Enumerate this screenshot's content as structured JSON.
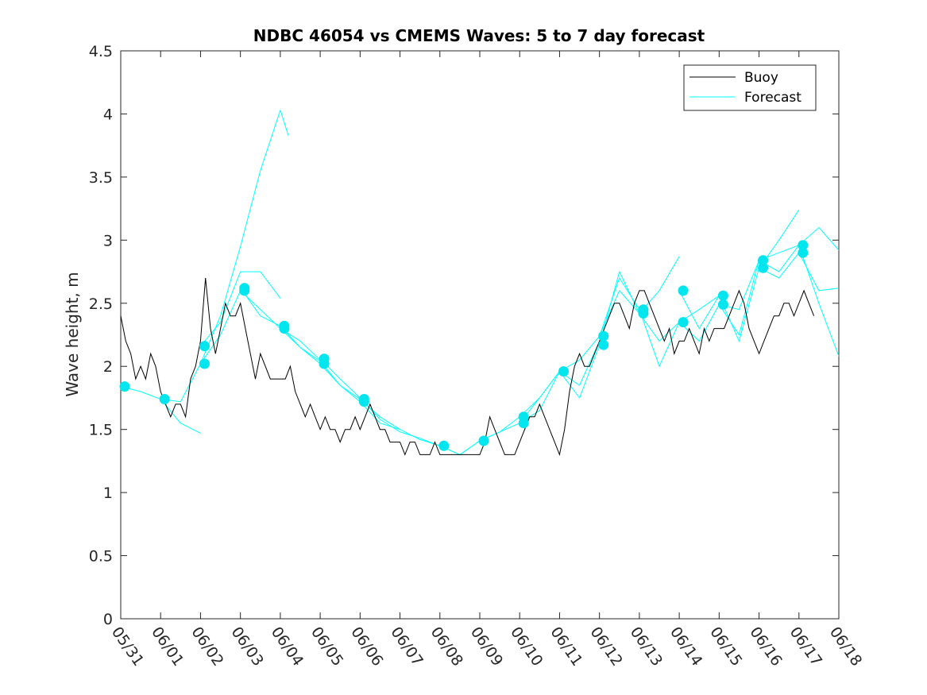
{
  "chart_data": {
    "type": "line",
    "title": "NDBC 46054 vs CMEMS Waves: 5 to 7 day forecast",
    "xlabel": "",
    "ylabel": "Wave height, m",
    "xlim": [
      "2024-05-31",
      "2024-06-18"
    ],
    "ylim": [
      0,
      4.5
    ],
    "x_ticks": [
      "05/31",
      "06/01",
      "06/02",
      "06/03",
      "06/04",
      "06/05",
      "06/06",
      "06/07",
      "06/08",
      "06/09",
      "06/10",
      "06/11",
      "06/12",
      "06/13",
      "06/14",
      "06/15",
      "06/16",
      "06/17",
      "06/18"
    ],
    "y_ticks": [
      "0",
      "0.5",
      "1",
      "1.5",
      "2",
      "2.5",
      "3",
      "3.5",
      "4",
      "4.5"
    ],
    "grid": false,
    "legend_position": "top-right",
    "colors": {
      "buoy": "#000000",
      "forecast": "#00ffff",
      "marker": "#00e5ee"
    },
    "series": [
      {
        "name": "Buoy",
        "style": "line",
        "x": [
          "05/31 00:00",
          "05/31 03:00",
          "05/31 06:00",
          "05/31 09:00",
          "05/31 12:00",
          "05/31 15:00",
          "05/31 18:00",
          "05/31 21:00",
          "06/01 00:00",
          "06/01 03:00",
          "06/01 06:00",
          "06/01 09:00",
          "06/01 12:00",
          "06/01 15:00",
          "06/01 18:00",
          "06/01 21:00",
          "06/02 00:00",
          "06/02 03:00",
          "06/02 06:00",
          "06/02 09:00",
          "06/02 12:00",
          "06/02 15:00",
          "06/02 18:00",
          "06/02 21:00",
          "06/03 00:00",
          "06/03 03:00",
          "06/03 06:00",
          "06/03 09:00",
          "06/03 12:00",
          "06/03 15:00",
          "06/03 18:00",
          "06/03 21:00",
          "06/04 00:00",
          "06/04 03:00",
          "06/04 06:00",
          "06/04 09:00",
          "06/04 12:00",
          "06/04 15:00",
          "06/04 18:00",
          "06/04 21:00",
          "06/05 00:00",
          "06/05 03:00",
          "06/05 06:00",
          "06/05 09:00",
          "06/05 12:00",
          "06/05 15:00",
          "06/05 18:00",
          "06/05 21:00",
          "06/06 00:00",
          "06/06 03:00",
          "06/06 06:00",
          "06/06 09:00",
          "06/06 12:00",
          "06/06 15:00",
          "06/06 18:00",
          "06/06 21:00",
          "06/07 00:00",
          "06/07 03:00",
          "06/07 06:00",
          "06/07 09:00",
          "06/07 12:00",
          "06/07 15:00",
          "06/07 18:00",
          "06/07 21:00",
          "06/08 00:00",
          "06/08 03:00",
          "06/08 06:00",
          "06/08 09:00",
          "06/08 12:00",
          "06/08 15:00",
          "06/08 18:00",
          "06/08 21:00",
          "06/09 00:00",
          "06/09 03:00",
          "06/09 06:00",
          "06/09 09:00",
          "06/09 12:00",
          "06/09 15:00",
          "06/09 18:00",
          "06/09 21:00",
          "06/10 00:00",
          "06/10 03:00",
          "06/10 06:00",
          "06/10 09:00",
          "06/10 12:00",
          "06/10 15:00",
          "06/10 18:00",
          "06/10 21:00",
          "06/11 00:00",
          "06/11 03:00",
          "06/11 06:00",
          "06/11 09:00",
          "06/11 12:00",
          "06/11 15:00",
          "06/11 18:00",
          "06/11 21:00",
          "06/12 00:00",
          "06/12 03:00",
          "06/12 06:00",
          "06/12 09:00",
          "06/12 12:00",
          "06/12 15:00",
          "06/12 18:00",
          "06/12 21:00",
          "06/13 00:00",
          "06/13 03:00",
          "06/13 06:00",
          "06/13 09:00",
          "06/13 12:00",
          "06/13 15:00",
          "06/13 18:00",
          "06/13 21:00",
          "06/14 00:00",
          "06/14 03:00",
          "06/14 06:00",
          "06/14 09:00",
          "06/14 12:00",
          "06/14 15:00",
          "06/14 18:00",
          "06/14 21:00",
          "06/15 00:00",
          "06/15 03:00",
          "06/15 06:00",
          "06/15 09:00",
          "06/15 12:00",
          "06/15 15:00",
          "06/15 18:00",
          "06/15 21:00",
          "06/16 00:00",
          "06/16 03:00",
          "06/16 06:00",
          "06/16 09:00",
          "06/16 12:00",
          "06/16 15:00",
          "06/16 18:00",
          "06/16 21:00",
          "06/17 00:00",
          "06/17 03:00",
          "06/17 06:00",
          "06/17 09:00"
        ],
        "days": [
          0,
          0.125,
          0.25,
          0.375,
          0.5,
          0.625,
          0.75,
          0.875,
          1,
          1.125,
          1.25,
          1.375,
          1.5,
          1.625,
          1.75,
          1.875,
          2,
          2.125,
          2.25,
          2.375,
          2.5,
          2.625,
          2.75,
          2.875,
          3,
          3.125,
          3.25,
          3.375,
          3.5,
          3.625,
          3.75,
          3.875,
          4,
          4.125,
          4.25,
          4.375,
          4.5,
          4.625,
          4.75,
          4.875,
          5,
          5.125,
          5.25,
          5.375,
          5.5,
          5.625,
          5.75,
          5.875,
          6,
          6.125,
          6.25,
          6.375,
          6.5,
          6.625,
          6.75,
          6.875,
          7,
          7.125,
          7.25,
          7.375,
          7.5,
          7.625,
          7.75,
          7.875,
          8,
          8.125,
          8.25,
          8.375,
          8.5,
          8.625,
          8.75,
          8.875,
          9,
          9.125,
          9.25,
          9.375,
          9.5,
          9.625,
          9.75,
          9.875,
          10,
          10.125,
          10.25,
          10.375,
          10.5,
          10.625,
          10.75,
          10.875,
          11,
          11.125,
          11.25,
          11.375,
          11.5,
          11.625,
          11.75,
          11.875,
          12,
          12.125,
          12.25,
          12.375,
          12.5,
          12.625,
          12.75,
          12.875,
          13,
          13.125,
          13.25,
          13.375,
          13.5,
          13.625,
          13.75,
          13.875,
          14,
          14.125,
          14.25,
          14.375,
          14.5,
          14.625,
          14.75,
          14.875,
          15,
          15.125,
          15.25,
          15.375,
          15.5,
          15.625,
          15.75,
          15.875,
          16,
          16.125,
          16.25,
          16.375,
          16.5,
          16.625,
          16.75,
          16.875,
          17,
          17.125,
          17.25,
          17.375
        ],
        "values": [
          2.4,
          2.2,
          2.1,
          1.9,
          2.0,
          1.9,
          2.1,
          2.0,
          1.8,
          1.7,
          1.6,
          1.7,
          1.7,
          1.6,
          1.9,
          2.0,
          2.2,
          2.7,
          2.3,
          2.1,
          2.3,
          2.5,
          2.4,
          2.4,
          2.5,
          2.3,
          2.1,
          1.9,
          2.1,
          2.0,
          1.9,
          1.9,
          1.9,
          1.9,
          2.0,
          1.8,
          1.7,
          1.6,
          1.7,
          1.6,
          1.5,
          1.6,
          1.5,
          1.5,
          1.4,
          1.5,
          1.5,
          1.6,
          1.5,
          1.6,
          1.7,
          1.6,
          1.5,
          1.5,
          1.4,
          1.4,
          1.4,
          1.3,
          1.4,
          1.4,
          1.3,
          1.3,
          1.3,
          1.4,
          1.3,
          1.3,
          1.3,
          1.3,
          1.3,
          1.3,
          1.3,
          1.3,
          1.3,
          1.4,
          1.6,
          1.5,
          1.4,
          1.3,
          1.3,
          1.3,
          1.4,
          1.5,
          1.6,
          1.6,
          1.7,
          1.6,
          1.5,
          1.4,
          1.3,
          1.5,
          1.8,
          2.0,
          2.1,
          2.0,
          2.0,
          2.1,
          2.2,
          2.3,
          2.4,
          2.5,
          2.5,
          2.4,
          2.3,
          2.5,
          2.6,
          2.6,
          2.5,
          2.4,
          2.3,
          2.2,
          2.3,
          2.1,
          2.2,
          2.2,
          2.3,
          2.2,
          2.1,
          2.3,
          2.2,
          2.3,
          2.3,
          2.3,
          2.4,
          2.5,
          2.6,
          2.5,
          2.3,
          2.2,
          2.1,
          2.2,
          2.3,
          2.4,
          2.4,
          2.5,
          2.5,
          2.4,
          2.5,
          2.6,
          2.5,
          2.4
        ]
      },
      {
        "name": "Forecast",
        "style": "line",
        "runs": [
          {
            "start": "05/31",
            "days": [
              0,
              0.5,
              1,
              1.5,
              2
            ],
            "values": [
              1.84,
              1.8,
              1.74,
              1.55,
              1.47
            ]
          },
          {
            "start": "06/01",
            "days": [
              1,
              1.5,
              2,
              2.5,
              3,
              3.5,
              4
            ],
            "values": [
              1.74,
              1.72,
              2.02,
              2.4,
              2.95,
              3.55,
              4.03
            ]
          },
          {
            "start": "06/01",
            "days": [
              4,
              4.2
            ],
            "values": [
              4.03,
              3.83
            ]
          },
          {
            "start": "06/02",
            "days": [
              2,
              2.5,
              3,
              3.5,
              4
            ],
            "values": [
              2.16,
              2.35,
              2.75,
              2.75,
              2.54
            ]
          },
          {
            "start": "06/02",
            "days": [
              2,
              2.5,
              3,
              3.5,
              4,
              4.5,
              5
            ],
            "values": [
              2.02,
              2.25,
              2.6,
              2.45,
              2.3,
              2.2,
              2.05
            ]
          },
          {
            "start": "06/03",
            "days": [
              3,
              3.5,
              4,
              4.5,
              5,
              5.5,
              6
            ],
            "values": [
              2.62,
              2.4,
              2.32,
              2.15,
              2.04,
              1.85,
              1.74
            ]
          },
          {
            "start": "06/04",
            "days": [
              4,
              4.5,
              5,
              5.5,
              6,
              6.5,
              7
            ],
            "values": [
              2.3,
              2.15,
              2.02,
              1.85,
              1.72,
              1.55,
              1.5
            ]
          },
          {
            "start": "06/05",
            "days": [
              5,
              5.5,
              6,
              6.5,
              7,
              7.5,
              8
            ],
            "values": [
              2.06,
              1.9,
              1.75,
              1.58,
              1.48,
              1.43,
              1.37
            ]
          },
          {
            "start": "06/06",
            "days": [
              6,
              6.5,
              7,
              7.5,
              8,
              8.5,
              9
            ],
            "values": [
              1.74,
              1.6,
              1.5,
              1.42,
              1.37,
              1.3,
              1.41
            ]
          },
          {
            "start": "06/08",
            "days": [
              8,
              8.5,
              9,
              9.5,
              10,
              10.5,
              11
            ],
            "values": [
              1.37,
              1.3,
              1.41,
              1.48,
              1.55,
              1.65,
              1.96
            ]
          },
          {
            "start": "06/09",
            "days": [
              9,
              9.5,
              10,
              10.5,
              11,
              11.5,
              12
            ],
            "values": [
              1.41,
              1.48,
              1.6,
              1.75,
              1.96,
              1.85,
              2.2
            ]
          },
          {
            "start": "06/10",
            "days": [
              10,
              10.5,
              11,
              11.5,
              12,
              12.5,
              13
            ],
            "values": [
              1.55,
              1.75,
              1.96,
              2.05,
              2.24,
              2.7,
              2.45
            ]
          },
          {
            "start": "06/11",
            "days": [
              11,
              11.5,
              12,
              12.5,
              13,
              13.5,
              14
            ],
            "values": [
              1.96,
              1.75,
              2.17,
              2.75,
              2.42,
              2.6,
              2.87
            ]
          },
          {
            "start": "06/12",
            "days": [
              12,
              12.5,
              13,
              13.5,
              14,
              14.5,
              15
            ],
            "values": [
              2.24,
              2.6,
              2.42,
              2.2,
              2.35,
              2.45,
              2.56
            ]
          },
          {
            "start": "06/13",
            "days": [
              13,
              13.5,
              14,
              14.5,
              15,
              15.5,
              16
            ],
            "values": [
              2.45,
              2.0,
              2.35,
              2.2,
              2.49,
              2.25,
              2.84
            ]
          },
          {
            "start": "06/14",
            "days": [
              14,
              14.5,
              15,
              15.5,
              16,
              16.5,
              17
            ],
            "values": [
              2.6,
              2.3,
              2.56,
              2.2,
              2.78,
              3.0,
              3.24
            ]
          },
          {
            "start": "06/15",
            "days": [
              15,
              15.5,
              16,
              16.5,
              17,
              17.5,
              18
            ],
            "values": [
              2.49,
              2.45,
              2.84,
              2.9,
              2.96,
              3.1,
              2.92
            ]
          },
          {
            "start": "06/16",
            "days": [
              16,
              16.5,
              17,
              17.5,
              18
            ],
            "values": [
              2.78,
              2.7,
              2.9,
              2.6,
              2.62
            ]
          },
          {
            "start": "06/16",
            "days": [
              16,
              16.5,
              17,
              17.5,
              18
            ],
            "values": [
              2.84,
              2.75,
              2.96,
              2.5,
              2.08
            ]
          }
        ]
      },
      {
        "style": "markers",
        "days": [
          0.1,
          1.1,
          2.1,
          2.1,
          3.1,
          3.1,
          4.1,
          4.1,
          5.1,
          5.1,
          6.1,
          6.1,
          8.1,
          9.1,
          10.1,
          10.1,
          11.1,
          12.1,
          12.1,
          13.1,
          13.1,
          14.1,
          14.1,
          15.1,
          15.1,
          16.1,
          16.1,
          17.1,
          17.1
        ],
        "values": [
          1.84,
          1.74,
          2.16,
          2.02,
          2.62,
          2.6,
          2.32,
          2.3,
          2.06,
          2.02,
          1.74,
          1.72,
          1.37,
          1.41,
          1.6,
          1.55,
          1.96,
          2.24,
          2.17,
          2.45,
          2.42,
          2.6,
          2.35,
          2.56,
          2.49,
          2.84,
          2.78,
          2.96,
          2.9
        ]
      }
    ]
  }
}
